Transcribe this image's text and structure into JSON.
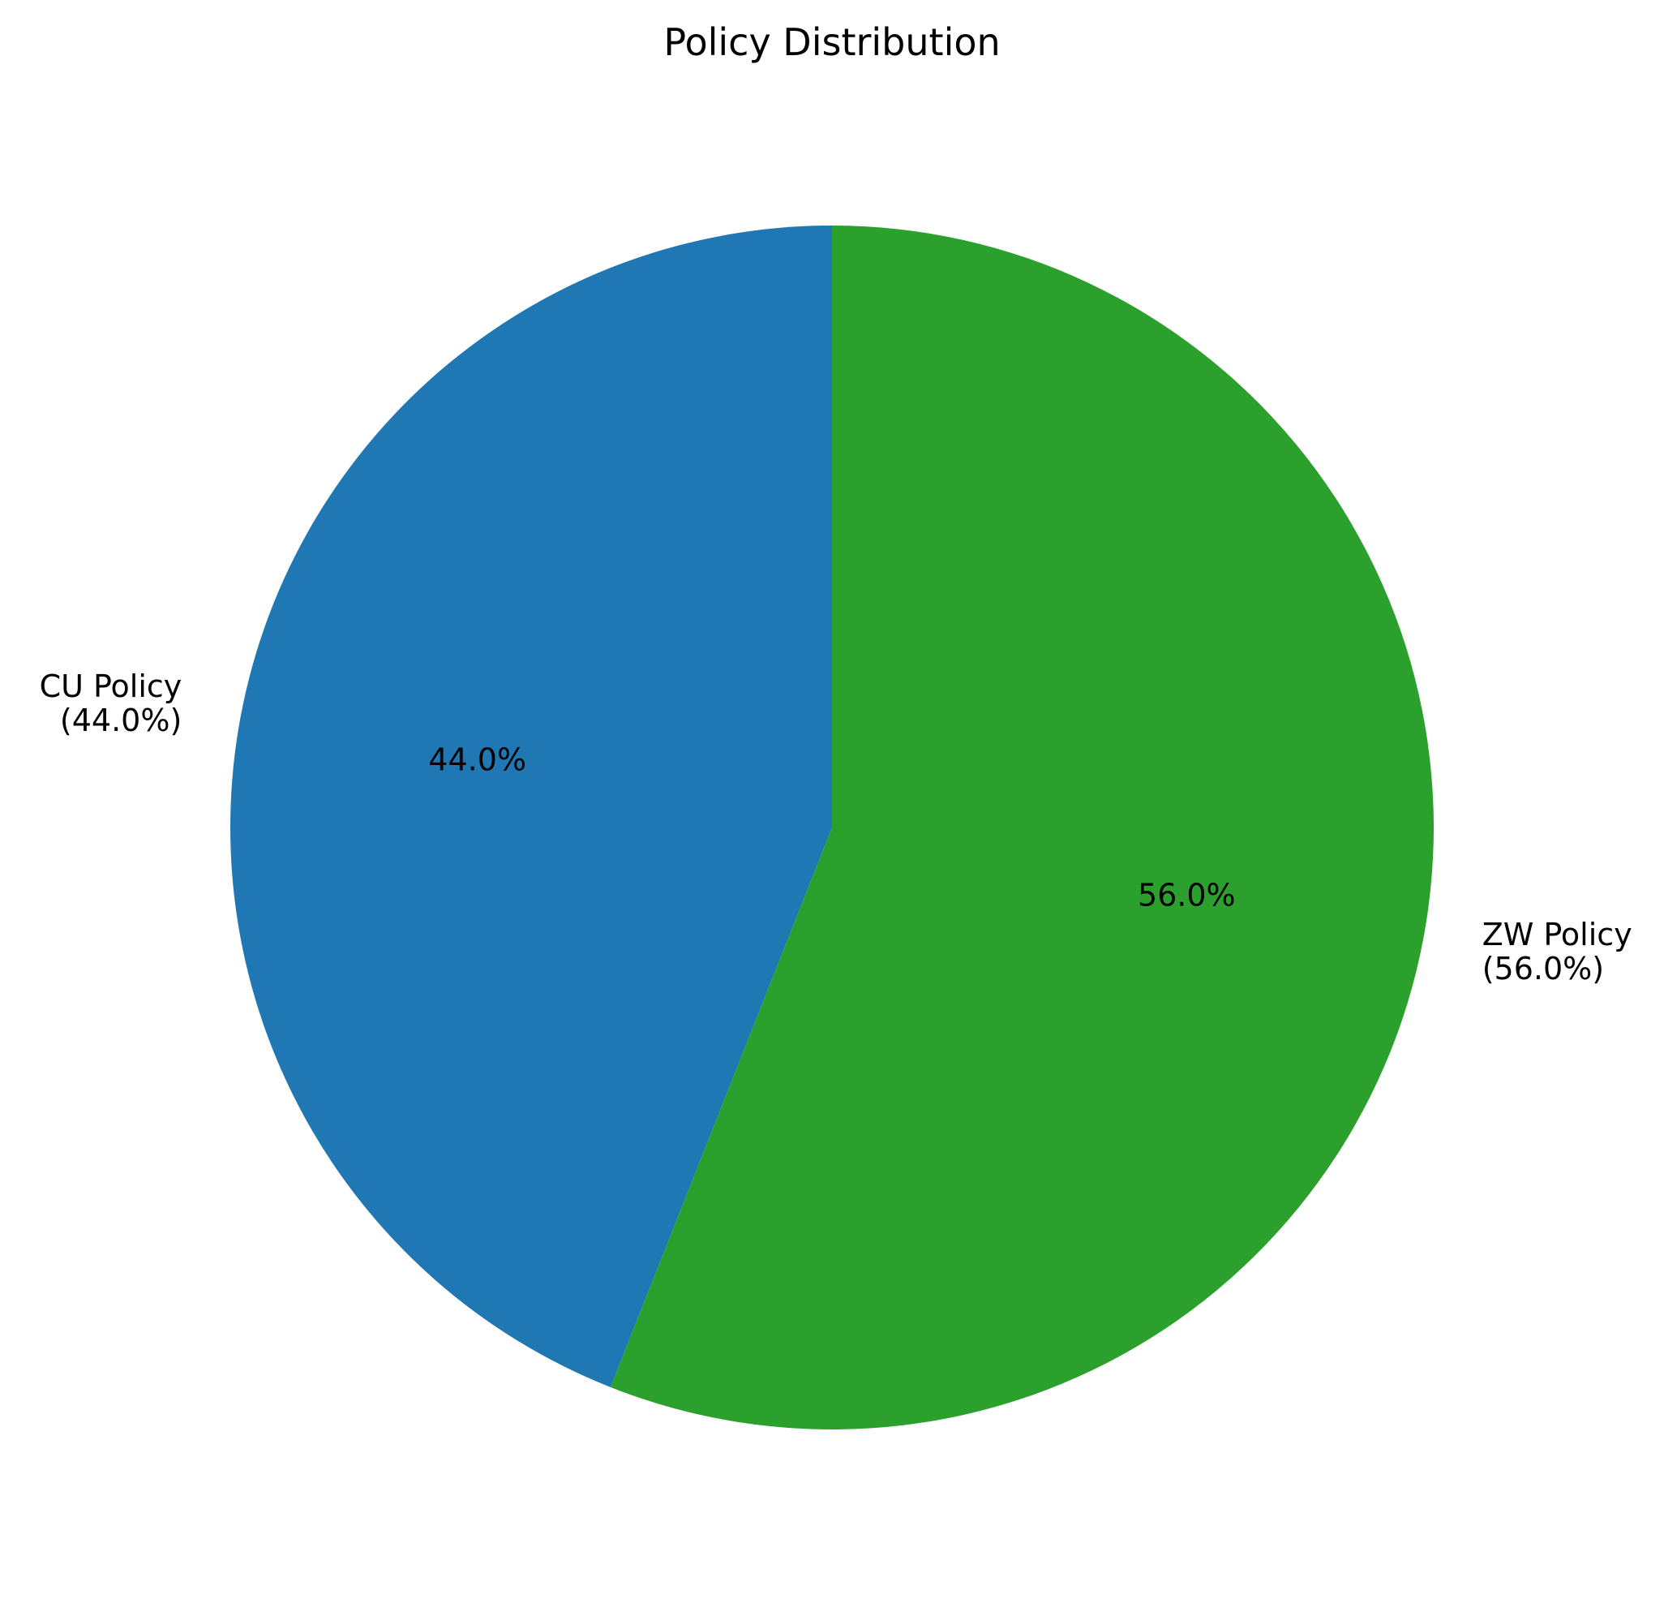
{
  "chart_data": {
    "type": "pie",
    "title": "Policy Distribution",
    "start_angle_deg": 90,
    "direction": "counterclockwise",
    "slices": [
      {
        "label": "CU Policy",
        "outer_label_lines": [
          "CU Policy",
          "(44.0%)"
        ],
        "value": 44.0,
        "pct_label": "44.0%",
        "color": "#1f77b4"
      },
      {
        "label": "ZW Policy",
        "outer_label_lines": [
          "ZW Policy",
          "(56.0%)"
        ],
        "value": 56.0,
        "pct_label": "56.0%",
        "color": "#2ca02c"
      }
    ]
  }
}
